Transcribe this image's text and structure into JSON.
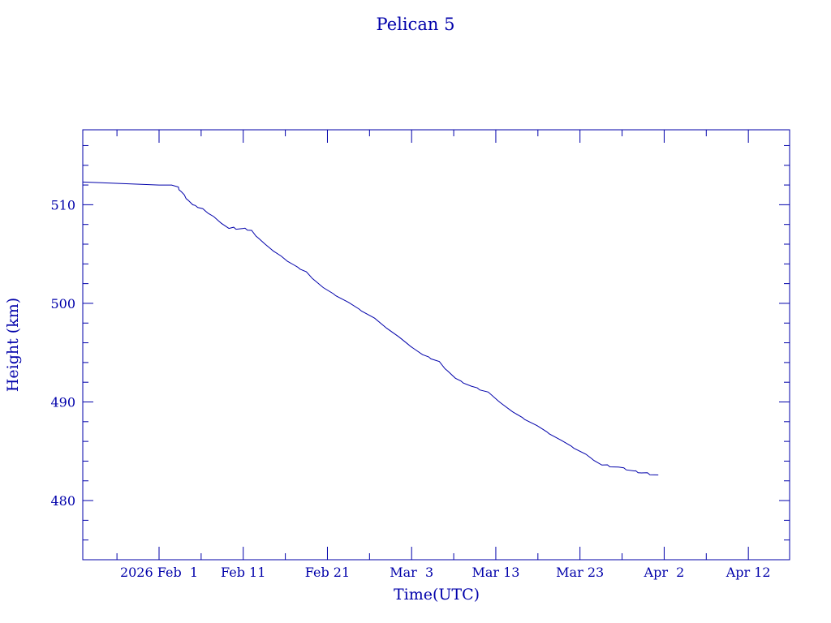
{
  "chart_data": {
    "type": "line",
    "title": "Pelican 5",
    "xlabel": "Time(UTC)",
    "ylabel": "Height (km)",
    "x_units": "days since 2026 Feb 1 (UTC)",
    "xlim": [
      -9.06,
      74.9
    ],
    "ylim": [
      474.0,
      517.6
    ],
    "grid": false,
    "color": "#0000aa",
    "x_ticks": [
      {
        "value": 0,
        "label": "2026 Feb  1"
      },
      {
        "value": 10,
        "label": "Feb 11"
      },
      {
        "value": 20,
        "label": "Feb 21"
      },
      {
        "value": 30,
        "label": "Mar  3"
      },
      {
        "value": 40,
        "label": "Mar 13"
      },
      {
        "value": 50,
        "label": "Mar 23"
      },
      {
        "value": 60,
        "label": "Apr  2"
      },
      {
        "value": 70,
        "label": "Apr 12"
      }
    ],
    "y_ticks": [
      {
        "value": 480,
        "label": "480"
      },
      {
        "value": 490,
        "label": "490"
      },
      {
        "value": 500,
        "label": "500"
      },
      {
        "value": 510,
        "label": "510"
      }
    ],
    "series": [
      {
        "name": "Pelican 5",
        "x": [
          -9.06,
          -6.0,
          -3.0,
          0.0,
          1.5,
          2.3,
          3.0,
          4.0,
          5.2,
          6.5,
          8.3,
          10.0,
          11.0,
          12.6,
          14.5,
          16.0,
          17.5,
          19.5,
          22.5,
          25.6,
          28.5,
          31.3,
          33.3,
          35.2,
          37.1,
          39.1,
          42.0,
          44.9,
          47.8,
          50.7,
          52.6,
          54.5,
          56.5,
          57.3,
          59.3
        ],
        "y": [
          512.3,
          512.2,
          512.1,
          512.0,
          512.0,
          511.8,
          511.0,
          510.0,
          509.6,
          508.8,
          507.6,
          507.6,
          507.4,
          506.0,
          504.8,
          503.9,
          503.2,
          501.6,
          500.1,
          498.5,
          496.6,
          494.8,
          494.1,
          492.4,
          491.6,
          491.0,
          489.0,
          487.6,
          486.1,
          484.7,
          483.6,
          483.4,
          483.0,
          482.8,
          482.6
        ]
      }
    ]
  }
}
